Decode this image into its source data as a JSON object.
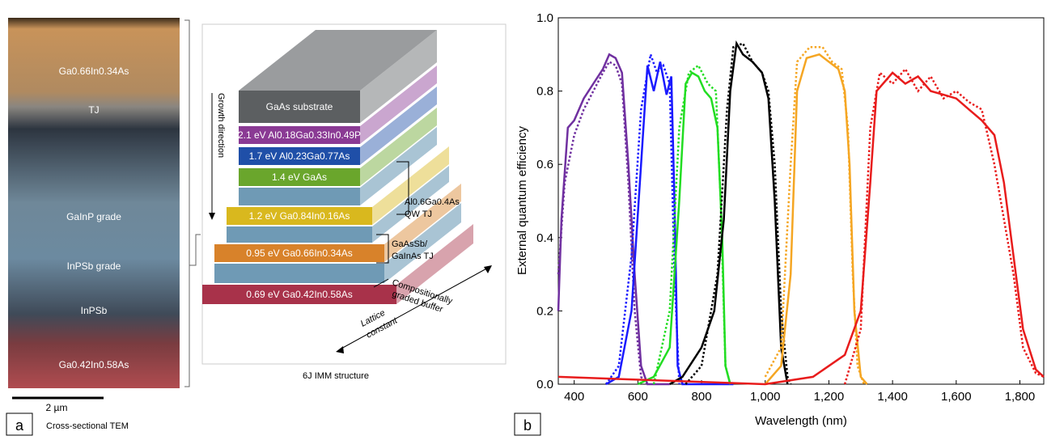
{
  "tem": {
    "labels": [
      "Ga0.66In0.34As",
      "TJ",
      "GaInP grade",
      "InPSb grade",
      "InPSb",
      "Ga0.42In0.58As"
    ],
    "scale": "2 µm",
    "panel": "a",
    "caption": "Cross-sectional TEM"
  },
  "diagram": {
    "layers": [
      "GaAs substrate",
      "2.1 eV Al0.18Ga0.33In0.49P",
      "1.7 eV Al0.23Ga0.77As",
      "1.4 eV GaAs",
      "1.2 eV Ga0.84In0.16As",
      "0.95 eV Ga0.66In0.34As",
      "0.69 eV Ga0.42In0.58As"
    ],
    "growth": "Growth direction",
    "qw_tj": [
      "Al0.6Ga0.4As",
      "QW TJ"
    ],
    "sb_tj": [
      "GaAsSb/",
      "GaInAs TJ"
    ],
    "buffer": [
      "Compositionally",
      "graded buffer"
    ],
    "lattice": [
      "Lattice",
      "constant"
    ],
    "caption": "6J IMM structure"
  },
  "chart_data": {
    "type": "line",
    "panel": "b",
    "xlabel": "Wavelength (nm)",
    "ylabel": "External quantum efficiency",
    "xlim": [
      350,
      1875
    ],
    "ylim": [
      0,
      1
    ],
    "xticks": [
      400,
      600,
      800,
      {
        "value": 1000,
        "label": "1,000"
      },
      {
        "value": 1200,
        "label": "1,200"
      },
      {
        "value": 1400,
        "label": "1,400"
      },
      {
        "value": 1600,
        "label": "1,600"
      },
      {
        "value": 1800,
        "label": "1,800"
      }
    ],
    "yticks": [
      {
        "value": 0,
        "label": "0.0"
      },
      0.2,
      0.4,
      0.6,
      0.8,
      {
        "value": 1,
        "label": "1.0"
      }
    ],
    "series": [
      {
        "color": "#7030a0",
        "dashed": false,
        "x": [
          350,
          360,
          380,
          400,
          430,
          460,
          490,
          510,
          530,
          550,
          570,
          590,
          610,
          630,
          700
        ],
        "values": [
          0.2,
          0.45,
          0.7,
          0.72,
          0.78,
          0.82,
          0.86,
          0.9,
          0.89,
          0.85,
          0.6,
          0.3,
          0.05,
          0,
          0
        ]
      },
      {
        "color": "#7030a0",
        "dashed": true,
        "x": [
          350,
          370,
          400,
          430,
          460,
          490,
          510,
          530,
          550,
          570,
          590,
          610,
          630
        ],
        "values": [
          0.3,
          0.55,
          0.68,
          0.75,
          0.8,
          0.85,
          0.88,
          0.87,
          0.82,
          0.55,
          0.2,
          0.02,
          0
        ]
      },
      {
        "color": "#1a1aff",
        "dashed": false,
        "x": [
          500,
          540,
          580,
          610,
          630,
          650,
          670,
          690,
          705,
          715,
          725,
          740,
          900
        ],
        "values": [
          0,
          0.02,
          0.2,
          0.6,
          0.87,
          0.8,
          0.88,
          0.79,
          0.84,
          0.5,
          0.05,
          0,
          0
        ]
      },
      {
        "color": "#1a1aff",
        "dashed": true,
        "x": [
          500,
          540,
          580,
          610,
          640,
          660,
          680,
          700,
          715,
          730
        ],
        "values": [
          0,
          0.05,
          0.35,
          0.75,
          0.9,
          0.85,
          0.87,
          0.82,
          0.3,
          0
        ]
      },
      {
        "color": "#22dd22",
        "dashed": false,
        "x": [
          600,
          650,
          700,
          730,
          750,
          770,
          790,
          810,
          830,
          850,
          865,
          875,
          890
        ],
        "values": [
          0,
          0.02,
          0.1,
          0.5,
          0.82,
          0.85,
          0.84,
          0.8,
          0.78,
          0.7,
          0.4,
          0.05,
          0
        ]
      },
      {
        "color": "#22dd22",
        "dashed": true,
        "x": [
          650,
          700,
          730,
          760,
          790,
          820,
          845,
          860,
          875,
          890
        ],
        "values": [
          0,
          0.2,
          0.7,
          0.85,
          0.87,
          0.82,
          0.8,
          0.5,
          0.05,
          0
        ]
      },
      {
        "color": "#000000",
        "dashed": false,
        "x": [
          700,
          740,
          800,
          840,
          870,
          890,
          910,
          930,
          960,
          990,
          1010,
          1030,
          1050,
          1070
        ],
        "values": [
          0,
          0.02,
          0.1,
          0.2,
          0.45,
          0.8,
          0.93,
          0.9,
          0.88,
          0.85,
          0.78,
          0.5,
          0.1,
          0
        ]
      },
      {
        "color": "#000000",
        "dashed": true,
        "x": [
          750,
          800,
          850,
          880,
          900,
          930,
          960,
          990,
          1010,
          1030,
          1050,
          1070,
          1080
        ],
        "values": [
          0,
          0.05,
          0.3,
          0.75,
          0.92,
          0.93,
          0.88,
          0.85,
          0.8,
          0.6,
          0.2,
          0.02,
          0
        ]
      },
      {
        "color": "#f5a623",
        "dashed": false,
        "x": [
          1000,
          1050,
          1080,
          1100,
          1130,
          1170,
          1200,
          1230,
          1250,
          1265,
          1280,
          1300,
          1320
        ],
        "values": [
          0,
          0.05,
          0.3,
          0.8,
          0.89,
          0.9,
          0.88,
          0.86,
          0.8,
          0.6,
          0.2,
          0.02,
          0
        ]
      },
      {
        "color": "#f5a623",
        "dashed": true,
        "x": [
          1000,
          1050,
          1080,
          1100,
          1140,
          1180,
          1210,
          1240,
          1260,
          1275,
          1290,
          1310
        ],
        "values": [
          0.02,
          0.1,
          0.6,
          0.88,
          0.92,
          0.92,
          0.88,
          0.86,
          0.7,
          0.3,
          0.05,
          0
        ]
      },
      {
        "color": "#e81c1c",
        "dashed": false,
        "x": [
          350,
          1000,
          1150,
          1250,
          1300,
          1330,
          1350,
          1380,
          1400,
          1440,
          1480,
          1520,
          1560,
          1600,
          1640,
          1680,
          1720,
          1750,
          1780,
          1810,
          1850,
          1875
        ],
        "values": [
          0.02,
          0,
          0.02,
          0.08,
          0.2,
          0.55,
          0.8,
          0.83,
          0.85,
          0.82,
          0.84,
          0.8,
          0.79,
          0.78,
          0.75,
          0.72,
          0.68,
          0.55,
          0.35,
          0.15,
          0.04,
          0.02
        ]
      },
      {
        "color": "#e81c1c",
        "dashed": true,
        "x": [
          1250,
          1300,
          1330,
          1360,
          1400,
          1440,
          1480,
          1520,
          1560,
          1600,
          1640,
          1680,
          1720,
          1750,
          1780,
          1810,
          1850,
          1875
        ],
        "values": [
          0,
          0.15,
          0.7,
          0.85,
          0.82,
          0.86,
          0.8,
          0.84,
          0.78,
          0.8,
          0.77,
          0.75,
          0.6,
          0.45,
          0.3,
          0.1,
          0.03,
          0.02
        ]
      }
    ]
  }
}
